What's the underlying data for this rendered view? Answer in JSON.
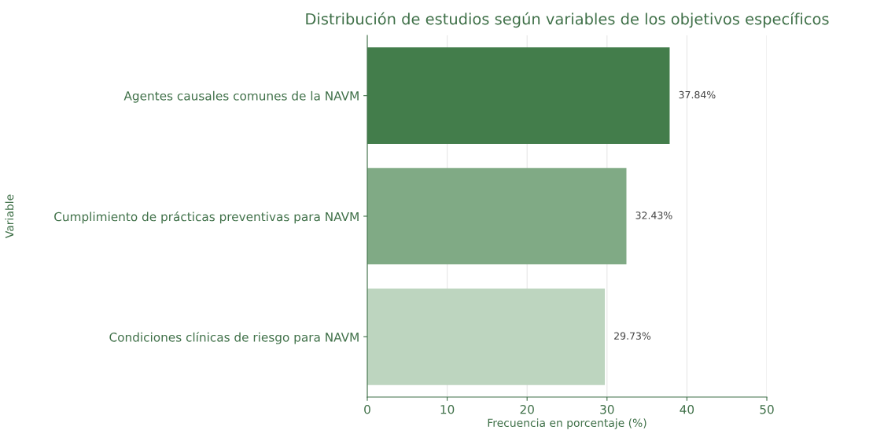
{
  "chart_data": {
    "type": "bar",
    "orientation": "horizontal",
    "title": "Distribución de estudios según variables de los objetivos específicos",
    "xlabel": "Frecuencia en porcentaje (%)",
    "ylabel": "Variable",
    "categories": [
      "Agentes causales comunes de la NAVM",
      "Cumplimiento de prácticas preventivas para NAVM",
      "Condiciones clínicas de riesgo para NAVM"
    ],
    "values": [
      37.84,
      32.43,
      29.73
    ],
    "colors": [
      "#437d4b",
      "#80aa85",
      "#bdd5bf"
    ],
    "value_labels": [
      "37.84%",
      "32.43%",
      "29.73%"
    ],
    "xlim": [
      0,
      50
    ],
    "xticks": [
      0,
      10,
      20,
      30,
      40,
      50
    ],
    "grid": "x",
    "legend": false
  }
}
